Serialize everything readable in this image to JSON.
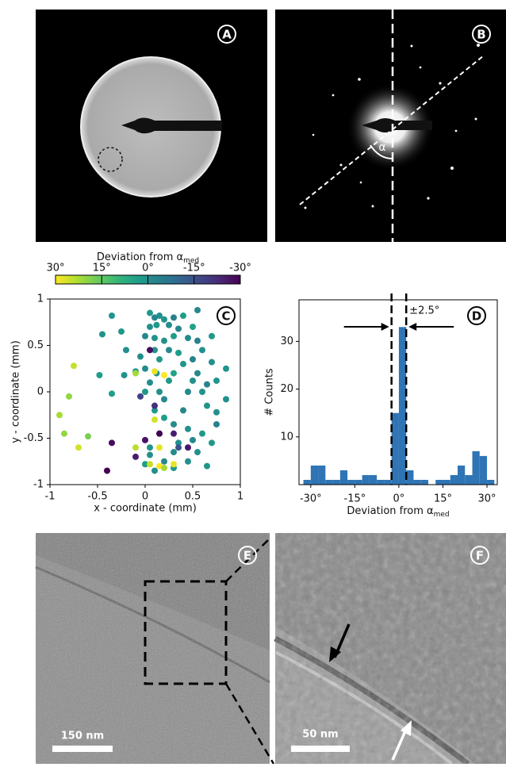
{
  "panels": {
    "labels": [
      "A",
      "B",
      "C",
      "D",
      "E",
      "F"
    ],
    "angle_label": "α",
    "scale_bars": [
      "150 nm",
      "50 nm"
    ]
  },
  "chart_data": [
    {
      "type": "scatter",
      "x_label": "x - coordinate (mm)",
      "y_label": "y - coordinate (mm)",
      "colorbar_label": "Deviation from α",
      "colorbar_label_sub": "med",
      "colormap": "viridis",
      "clim": [
        -30,
        30
      ],
      "colorbar_ticks": [
        {
          "value": 30,
          "label": "30°"
        },
        {
          "value": 15,
          "label": "15°"
        },
        {
          "value": 0,
          "label": "0°"
        },
        {
          "value": -15,
          "label": "-15°"
        },
        {
          "value": -30,
          "label": "-30°"
        }
      ],
      "xlim": [
        -1,
        1
      ],
      "ylim": [
        -1,
        1
      ],
      "xticks": [
        -1,
        -0.5,
        0,
        0.5,
        1
      ],
      "yticks": [
        -1,
        -0.5,
        0,
        0.5,
        1
      ],
      "x": [
        0.05,
        0.1,
        0.15,
        0.2,
        0.3,
        0.4,
        0.55,
        -0.35,
        0.05,
        0.12,
        0.25,
        0.35,
        0.5,
        -0.45,
        -0.25,
        0.0,
        0.1,
        0.2,
        0.3,
        0.45,
        0.55,
        0.7,
        -0.2,
        0.1,
        0.25,
        0.35,
        0.6,
        -0.05,
        0.15,
        0.4,
        0.5,
        0.7,
        -0.1,
        0.0,
        0.12,
        0.3,
        0.55,
        0.85,
        -0.48,
        -0.22,
        0.05,
        0.25,
        0.5,
        0.65,
        0.75,
        0.0,
        0.15,
        0.45,
        0.6,
        -0.35,
        0.2,
        0.85,
        0.1,
        0.4,
        0.65,
        0.75,
        0.2,
        0.3,
        0.45,
        0.6,
        0.75,
        0.15,
        0.35,
        0.5,
        0.7,
        0.05,
        0.3,
        0.55,
        0.0,
        0.2,
        0.45,
        0.65,
        0.1,
        0.3,
        0.05,
        -0.75,
        -0.1,
        0.1,
        0.2,
        -0.8,
        -0.9,
        -0.85,
        -0.6,
        -0.7,
        -0.1,
        0.1,
        0.15,
        0.15,
        0.2,
        0.3,
        0.05,
        0.05,
        0.1,
        0.15,
        0.3,
        0.0,
        -0.35,
        -0.1,
        -0.4,
        0.45,
        0.35,
        -0.05
      ],
      "y": [
        0.85,
        0.8,
        0.82,
        0.78,
        0.8,
        0.82,
        0.88,
        0.82,
        0.7,
        0.72,
        0.72,
        0.68,
        0.7,
        0.62,
        0.65,
        0.6,
        0.58,
        0.55,
        0.6,
        0.58,
        0.55,
        0.6,
        0.45,
        0.45,
        0.45,
        0.42,
        0.45,
        0.38,
        0.35,
        0.3,
        0.35,
        0.32,
        0.22,
        0.25,
        0.2,
        0.2,
        0.2,
        0.25,
        0.18,
        0.18,
        0.1,
        0.12,
        0.12,
        0.08,
        0.12,
        0.0,
        0.0,
        0.0,
        0.0,
        -0.02,
        -0.08,
        -0.08,
        -0.2,
        -0.2,
        -0.15,
        -0.22,
        -0.28,
        -0.35,
        -0.4,
        -0.45,
        -0.35,
        -0.45,
        -0.55,
        -0.52,
        -0.55,
        -0.6,
        -0.65,
        -0.65,
        -0.78,
        -0.75,
        -0.75,
        -0.8,
        -0.85,
        -0.82,
        -0.68,
        0.28,
        0.2,
        0.22,
        0.18,
        -0.05,
        -0.25,
        -0.45,
        -0.48,
        -0.6,
        -0.6,
        -0.3,
        -0.6,
        -0.8,
        -0.82,
        -0.78,
        -0.78,
        0.45,
        -0.15,
        -0.45,
        -0.45,
        -0.52,
        -0.55,
        -0.7,
        -0.85,
        -0.6,
        -0.6,
        -0.05
      ],
      "c": [
        2,
        -3,
        0,
        1,
        -4,
        3,
        -2,
        1,
        0,
        2,
        -1,
        -3,
        4,
        0,
        2,
        -2,
        1,
        0,
        3,
        -1,
        -4,
        2,
        0,
        1,
        -2,
        3,
        0,
        -1,
        2,
        1,
        -3,
        0,
        2,
        -1,
        0,
        4,
        -2,
        1,
        3,
        0,
        -1,
        2,
        0,
        -3,
        1,
        2,
        0,
        -2,
        1,
        3,
        -1,
        0,
        2,
        -2,
        1,
        0,
        3,
        -1,
        0,
        2,
        -3,
        1,
        0,
        -2,
        2,
        1,
        -1,
        0,
        3,
        -2,
        0,
        1,
        -1,
        2,
        0,
        25,
        22,
        28,
        30,
        20,
        22,
        20,
        18,
        26,
        24,
        26,
        28,
        30,
        22,
        28,
        25,
        -28,
        -22,
        -30,
        -25,
        -27,
        -28,
        -25,
        -30,
        -26,
        -15,
        -18
      ]
    },
    {
      "type": "histogram",
      "x_label": "Deviation from α",
      "x_label_sub": "med",
      "y_label": "# Counts",
      "annotation": "±2.5°",
      "vlines": [
        -2.5,
        2.5
      ],
      "color": "#2f75b5",
      "bins": [
        -32.5,
        -30,
        -27.5,
        -25,
        -22.5,
        -20,
        -17.5,
        -15,
        -12.5,
        -10,
        -7.5,
        -5,
        -2.5,
        0,
        2.5,
        5,
        7.5,
        10,
        12.5,
        15,
        17.5,
        20,
        22.5,
        25,
        27.5,
        30,
        32.5
      ],
      "values": [
        1,
        4,
        4,
        1,
        1,
        3,
        1,
        1,
        2,
        2,
        1,
        1,
        15,
        33,
        3,
        1,
        1,
        0,
        1,
        1,
        2,
        4,
        2,
        7,
        6,
        1
      ],
      "xlim": [
        -34,
        33.5
      ],
      "ylim": [
        0,
        38.7
      ],
      "xticks": [
        {
          "value": -30,
          "label": "-30°"
        },
        {
          "value": -15,
          "label": "-15°"
        },
        {
          "value": 0,
          "label": "0°"
        },
        {
          "value": 15,
          "label": "15°"
        },
        {
          "value": 30,
          "label": "30°"
        }
      ],
      "yticks": [
        10,
        20,
        30
      ]
    }
  ]
}
